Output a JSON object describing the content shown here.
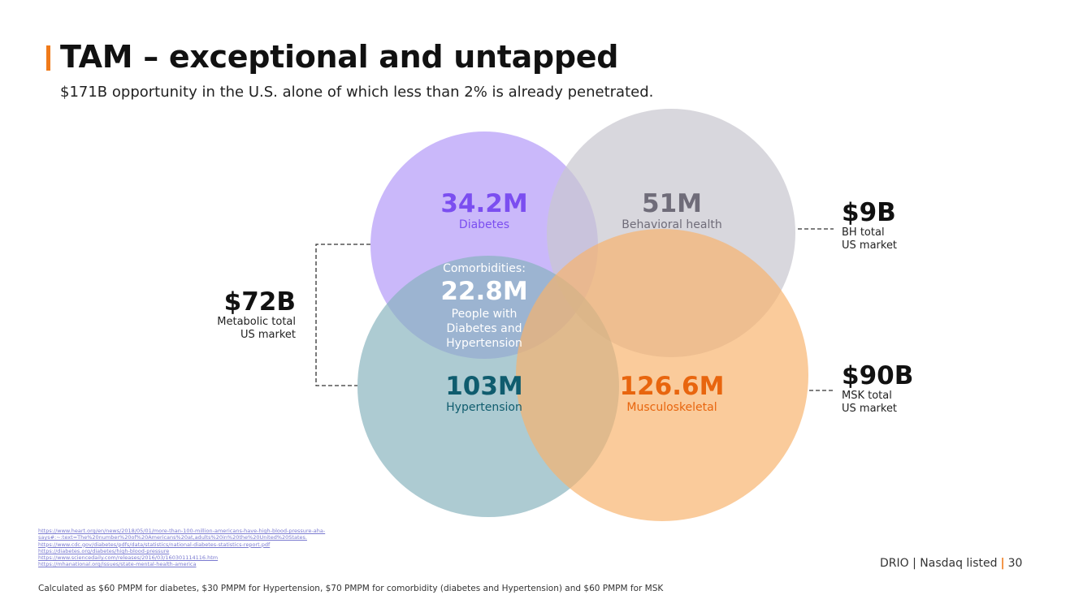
{
  "header": {
    "title": "TAM – exceptional and untapped",
    "subtitle": "$171B opportunity in the U.S. alone of which less than 2% is already penetrated."
  },
  "venn": {
    "diabetes": {
      "value": "34.2M",
      "label": "Diabetes",
      "color": "#b69cf8",
      "text_color": "#7b4ef0"
    },
    "behavioral": {
      "value": "51M",
      "label": "Behavioral health",
      "color": "#c9c7d0",
      "text_color": "#6f6c79"
    },
    "hypertension": {
      "value": "103M",
      "label": "Hypertension",
      "color": "#86b2bc",
      "text_color": "#0f5c6e"
    },
    "msk": {
      "value": "126.6M",
      "label": "Musculoskeletal",
      "color": "#f7b26c",
      "text_color": "#e8650e"
    },
    "comorbid": {
      "intro": "Comorbidities:",
      "value": "22.8M",
      "line1": "People with",
      "line2": "Diabetes and",
      "line3": "Hypertension"
    }
  },
  "markets": {
    "metabolic": {
      "amount": "$72B",
      "line1": "Metabolic total",
      "line2": "US market"
    },
    "bh": {
      "amount": "$9B",
      "line1": "BH total",
      "line2": "US market"
    },
    "msk": {
      "amount": "$90B",
      "line1": "MSK total",
      "line2": "US market"
    }
  },
  "sources": [
    "https://www.heart.org/en/news/2018/05/01/more-than-100-million-americans-have-high-blood-pressure-aha-",
    "says#:~:text=The%20number%20of%20Americans%20at,adults%20in%20the%20United%20States.",
    "https://www.cdc.gov/diabetes/pdfs/data/statistics/national-diabetes-statistics-report.pdf",
    "https://diabetes.org/diabetes/high-blood-pressure",
    "https://www.sciencedaily.com/releases/2016/03/160301114116.htm",
    "https://mhanational.org/issues/state-mental-health-america"
  ],
  "footnote": "Calculated as $60 PMPM for diabetes, $30 PMPM for Hypertension, $70 PMPM for comorbidity (diabetes and Hypertension) and $60 PMPM for MSK",
  "footer": {
    "brand": "DRIO | Nasdaq listed",
    "page": "30"
  },
  "accent_color": "#f07a1a"
}
